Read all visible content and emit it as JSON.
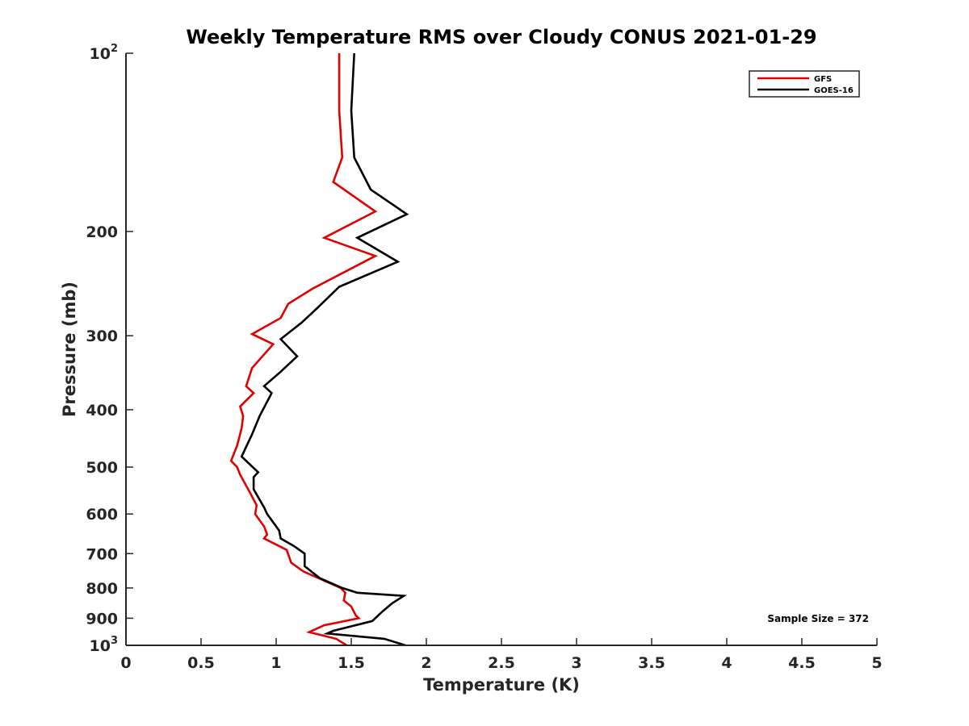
{
  "chart_data": {
    "type": "line",
    "title": "Weekly Temperature RMS over Cloudy CONUS 2021-01-29",
    "xlabel": "Temperature (K)",
    "ylabel": "Pressure (mb)",
    "xlim": [
      0,
      5
    ],
    "ylim": [
      100,
      1000
    ],
    "y_scale": "log",
    "y_reversed": true,
    "grid": false,
    "legend_position": "top-right",
    "x_ticks": [
      0,
      0.5,
      1,
      1.5,
      2,
      2.5,
      3,
      3.5,
      4,
      4.5,
      5
    ],
    "x_tick_labels": [
      "0",
      "0.5",
      "1",
      "1.5",
      "2",
      "2.5",
      "3",
      "3.5",
      "4",
      "4.5",
      "5"
    ],
    "y_ticks": [
      100,
      200,
      300,
      400,
      500,
      600,
      700,
      800,
      900,
      1000
    ],
    "y_tick_labels": [
      {
        "base": "10",
        "exp": "2"
      },
      {
        "base": "200",
        "exp": ""
      },
      {
        "base": "300",
        "exp": ""
      },
      {
        "base": "400",
        "exp": ""
      },
      {
        "base": "500",
        "exp": ""
      },
      {
        "base": "600",
        "exp": ""
      },
      {
        "base": "700",
        "exp": ""
      },
      {
        "base": "800",
        "exp": ""
      },
      {
        "base": "900",
        "exp": ""
      },
      {
        "base": "10",
        "exp": "3"
      }
    ],
    "annotation": "Sample Size = 372",
    "series": [
      {
        "name": "GFS",
        "color": "#e00000",
        "points": [
          [
            1.42,
            100
          ],
          [
            1.42,
            125
          ],
          [
            1.44,
            150
          ],
          [
            1.38,
            165
          ],
          [
            1.66,
            185
          ],
          [
            1.32,
            205
          ],
          [
            1.66,
            220
          ],
          [
            1.24,
            250
          ],
          [
            1.08,
            265
          ],
          [
            1.03,
            280
          ],
          [
            0.84,
            298
          ],
          [
            0.98,
            310
          ],
          [
            0.84,
            340
          ],
          [
            0.8,
            365
          ],
          [
            0.85,
            375
          ],
          [
            0.76,
            395
          ],
          [
            0.78,
            410
          ],
          [
            0.77,
            430
          ],
          [
            0.74,
            460
          ],
          [
            0.7,
            488
          ],
          [
            0.74,
            500
          ],
          [
            0.76,
            515
          ],
          [
            0.83,
            555
          ],
          [
            0.87,
            580
          ],
          [
            0.86,
            600
          ],
          [
            0.92,
            630
          ],
          [
            0.94,
            650
          ],
          [
            0.92,
            660
          ],
          [
            1.07,
            690
          ],
          [
            1.1,
            725
          ],
          [
            1.18,
            750
          ],
          [
            1.43,
            800
          ],
          [
            1.46,
            815
          ],
          [
            1.45,
            840
          ],
          [
            1.5,
            860
          ],
          [
            1.53,
            890
          ],
          [
            1.55,
            900
          ],
          [
            1.32,
            925
          ],
          [
            1.22,
            950
          ],
          [
            1.4,
            975
          ],
          [
            1.47,
            1000
          ]
        ]
      },
      {
        "name": "GOES-16",
        "color": "#000000",
        "points": [
          [
            1.52,
            100
          ],
          [
            1.5,
            125
          ],
          [
            1.52,
            150
          ],
          [
            1.63,
            170
          ],
          [
            1.87,
            187
          ],
          [
            1.54,
            205
          ],
          [
            1.81,
            225
          ],
          [
            1.42,
            248
          ],
          [
            1.27,
            270
          ],
          [
            1.17,
            285
          ],
          [
            1.03,
            304
          ],
          [
            1.14,
            325
          ],
          [
            1.03,
            345
          ],
          [
            0.92,
            365
          ],
          [
            0.97,
            375
          ],
          [
            0.89,
            410
          ],
          [
            0.84,
            440
          ],
          [
            0.77,
            480
          ],
          [
            0.88,
            510
          ],
          [
            0.85,
            520
          ],
          [
            0.85,
            545
          ],
          [
            0.92,
            585
          ],
          [
            0.94,
            600
          ],
          [
            1.02,
            640
          ],
          [
            1.03,
            660
          ],
          [
            1.12,
            680
          ],
          [
            1.19,
            700
          ],
          [
            1.19,
            735
          ],
          [
            1.29,
            770
          ],
          [
            1.44,
            800
          ],
          [
            1.54,
            815
          ],
          [
            1.85,
            825
          ],
          [
            1.77,
            850
          ],
          [
            1.7,
            880
          ],
          [
            1.64,
            910
          ],
          [
            1.38,
            945
          ],
          [
            1.34,
            955
          ],
          [
            1.72,
            975
          ],
          [
            1.86,
            1000
          ]
        ]
      }
    ]
  }
}
